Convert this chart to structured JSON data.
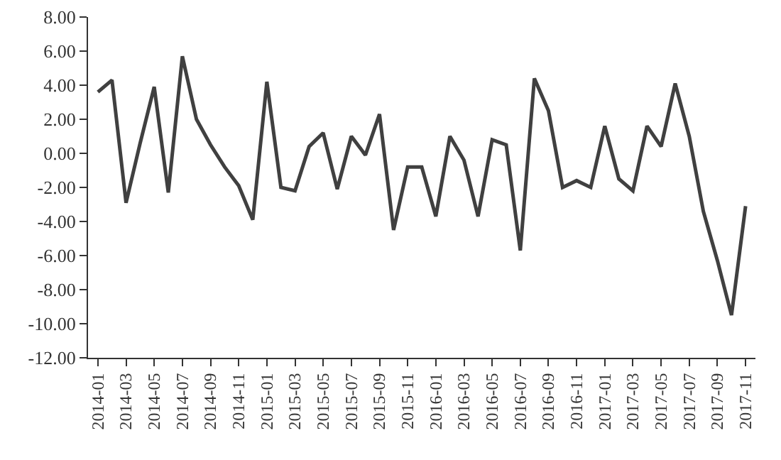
{
  "chart_data": {
    "type": "line",
    "categories": [
      "2014-01",
      null,
      "2014-03",
      null,
      "2014-05",
      null,
      "2014-07",
      null,
      "2014-09",
      null,
      "2014-11",
      null,
      "2015-01",
      null,
      "2015-03",
      null,
      "2015-05",
      null,
      "2015-07",
      null,
      "2015-09",
      null,
      "2015-11",
      null,
      "2016-01",
      null,
      "2016-03",
      null,
      "2016-05",
      null,
      "2016-07",
      null,
      "2016-09",
      null,
      "2016-11",
      null,
      "2017-01",
      null,
      "2017-03",
      null,
      "2017-05",
      null,
      "2017-07",
      null,
      "2017-09",
      null,
      "2017-11"
    ],
    "series": [
      {
        "color": "#404040",
        "values": [
          3.6,
          4.3,
          -2.9,
          0.6,
          3.9,
          -2.3,
          5.7,
          2.0,
          0.5,
          -0.8,
          -1.9,
          -3.9,
          4.2,
          -2.0,
          -2.2,
          0.4,
          1.2,
          -2.1,
          1.0,
          -0.1,
          2.3,
          -4.5,
          -0.8,
          -0.8,
          -3.7,
          1.0,
          -0.4,
          -3.7,
          0.8,
          0.5,
          -5.7,
          4.4,
          2.5,
          -2.0,
          -1.6,
          -2.0,
          1.6,
          -1.5,
          -2.2,
          1.6,
          0.4,
          4.1,
          1.0,
          -3.4,
          -6.3,
          -9.5,
          -3.1
        ]
      }
    ],
    "ylim": [
      -12,
      8
    ],
    "yticks": [
      {
        "value": -12,
        "label": "-12.00"
      },
      {
        "value": -10,
        "label": "-10.00"
      },
      {
        "value": -8,
        "label": "-8.00"
      },
      {
        "value": -6,
        "label": "-6.00"
      },
      {
        "value": -4,
        "label": "-4.00"
      },
      {
        "value": -2,
        "label": "-2.00"
      },
      {
        "value": 0,
        "label": "0.00"
      },
      {
        "value": 2,
        "label": "2.00"
      },
      {
        "value": 4,
        "label": "4.00"
      },
      {
        "value": 6,
        "label": "6.00"
      },
      {
        "value": 8,
        "label": "8.00"
      }
    ],
    "grid": false,
    "marker": "none",
    "line_style": "solid"
  }
}
